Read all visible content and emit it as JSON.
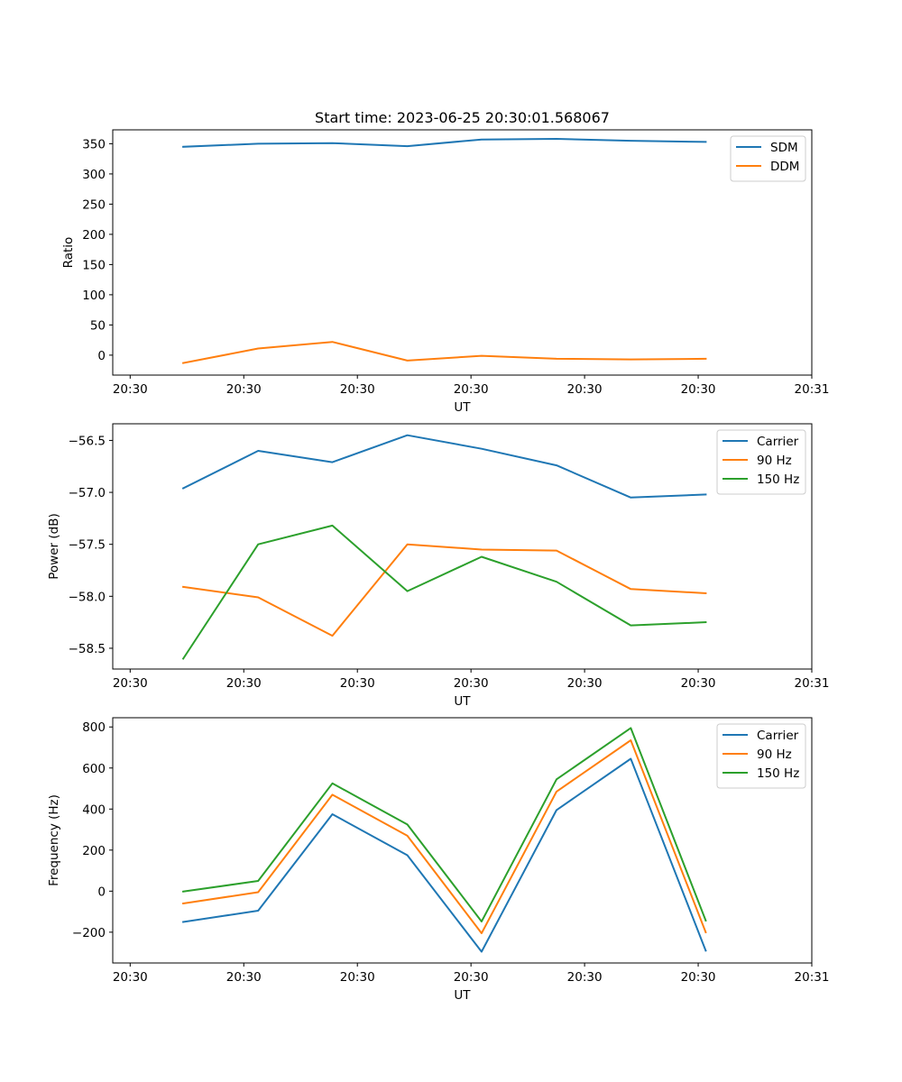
{
  "figure_title": "Start time: 2023-06-25 20:30:01.568067",
  "chart_data": [
    {
      "type": "line",
      "title": "Start time: 2023-06-25 20:30:01.568067",
      "xlabel": "UT",
      "ylabel": "Ratio",
      "xlim": [
        -0.23,
        9.0
      ],
      "ylim": [
        -33,
        373
      ],
      "x_ticks": [
        0,
        1.5,
        3,
        4.5,
        6,
        7.5,
        9
      ],
      "x_tick_labels": [
        "20:30",
        "20:30",
        "20:30",
        "20:30",
        "20:30",
        "20:30",
        "20:31"
      ],
      "y_ticks": [
        0,
        50,
        100,
        150,
        200,
        250,
        300,
        350
      ],
      "y_tick_labels": [
        "0",
        "50",
        "100",
        "150",
        "200",
        "250",
        "300",
        "350"
      ],
      "legend_position": "top-right",
      "x": [
        0.7,
        1.69,
        2.67,
        3.66,
        4.64,
        5.63,
        6.61,
        7.6
      ],
      "series": [
        {
          "name": "SDM",
          "color": "#1f77b4",
          "values": [
            345,
            350,
            351,
            346,
            357,
            358,
            355,
            353
          ]
        },
        {
          "name": "DDM",
          "color": "#ff7f0e",
          "values": [
            -13,
            11,
            22,
            -9,
            -1,
            -6,
            -7,
            -6
          ]
        }
      ]
    },
    {
      "type": "line",
      "title": "",
      "xlabel": "UT",
      "ylabel": "Power (dB)",
      "xlim": [
        -0.23,
        9.0
      ],
      "ylim": [
        -58.7,
        -56.34
      ],
      "x_ticks": [
        0,
        1.5,
        3,
        4.5,
        6,
        7.5,
        9
      ],
      "x_tick_labels": [
        "20:30",
        "20:30",
        "20:30",
        "20:30",
        "20:30",
        "20:30",
        "20:31"
      ],
      "y_ticks": [
        -58.5,
        -58.0,
        -57.5,
        -57.0,
        -56.5
      ],
      "y_tick_labels": [
        "−58.5",
        "−58.0",
        "−57.5",
        "−57.0",
        "−56.5"
      ],
      "legend_position": "top-right",
      "x": [
        0.7,
        1.69,
        2.67,
        3.66,
        4.64,
        5.63,
        6.61,
        7.6
      ],
      "series": [
        {
          "name": "Carrier",
          "color": "#1f77b4",
          "values": [
            -56.96,
            -56.6,
            -56.71,
            -56.45,
            -56.58,
            -56.74,
            -57.05,
            -57.02
          ]
        },
        {
          "name": "90 Hz",
          "color": "#ff7f0e",
          "values": [
            -57.91,
            -58.01,
            -58.38,
            -57.5,
            -57.55,
            -57.56,
            -57.93,
            -57.97
          ]
        },
        {
          "name": "150 Hz",
          "color": "#2ca02c",
          "values": [
            -58.6,
            -57.5,
            -57.32,
            -57.95,
            -57.62,
            -57.86,
            -58.28,
            -58.25
          ]
        }
      ]
    },
    {
      "type": "line",
      "title": "",
      "xlabel": "UT",
      "ylabel": "Frequency (Hz)",
      "xlim": [
        -0.23,
        9.0
      ],
      "ylim": [
        -350,
        845
      ],
      "x_ticks": [
        0,
        1.5,
        3,
        4.5,
        6,
        7.5,
        9
      ],
      "x_tick_labels": [
        "20:30",
        "20:30",
        "20:30",
        "20:30",
        "20:30",
        "20:30",
        "20:31"
      ],
      "y_ticks": [
        -200,
        0,
        200,
        400,
        600,
        800
      ],
      "y_tick_labels": [
        "−200",
        "0",
        "200",
        "400",
        "600",
        "800"
      ],
      "legend_position": "top-right",
      "x": [
        0.7,
        1.69,
        2.67,
        3.66,
        4.64,
        5.63,
        6.61,
        7.6
      ],
      "series": [
        {
          "name": "Carrier",
          "color": "#1f77b4",
          "values": [
            -150,
            -95,
            375,
            175,
            -295,
            395,
            645,
            -290
          ]
        },
        {
          "name": "90 Hz",
          "color": "#ff7f0e",
          "values": [
            -60,
            -5,
            470,
            270,
            -205,
            485,
            735,
            -200
          ]
        },
        {
          "name": "150 Hz",
          "color": "#2ca02c",
          "values": [
            -2,
            50,
            525,
            325,
            -148,
            545,
            795,
            -143
          ]
        }
      ]
    }
  ]
}
